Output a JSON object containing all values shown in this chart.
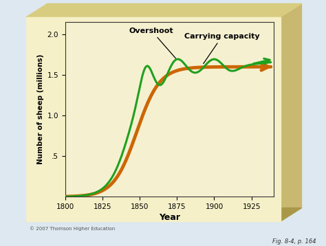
{
  "title": "",
  "xlabel": "Year",
  "ylabel": "Number of sheep (millions)",
  "xlim": [
    1800,
    1940
  ],
  "ylim": [
    0,
    2.15
  ],
  "yticks": [
    0.5,
    1.0,
    1.5,
    2.0
  ],
  "ytick_labels": [
    ".5",
    "1.0",
    "1.5",
    "2.0"
  ],
  "xticks": [
    1800,
    1825,
    1850,
    1875,
    1900,
    1925
  ],
  "carrying_capacity": 1.6,
  "plot_bg": "#f5f0d0",
  "outer_bg": "#dde8f0",
  "box_face": "#f5f0c8",
  "box_right": "#c8b870",
  "box_bottom": "#a89848",
  "box_top": "#d8cc80",
  "green_color": "#1fa01f",
  "orange_color": "#cc6600",
  "overshoot_label": "Overshoot",
  "carrying_label": "Carrying capacity",
  "footnote": "© 2007 Thomson Higher Education",
  "fig_label": "Fig. 8-4, p. 164"
}
